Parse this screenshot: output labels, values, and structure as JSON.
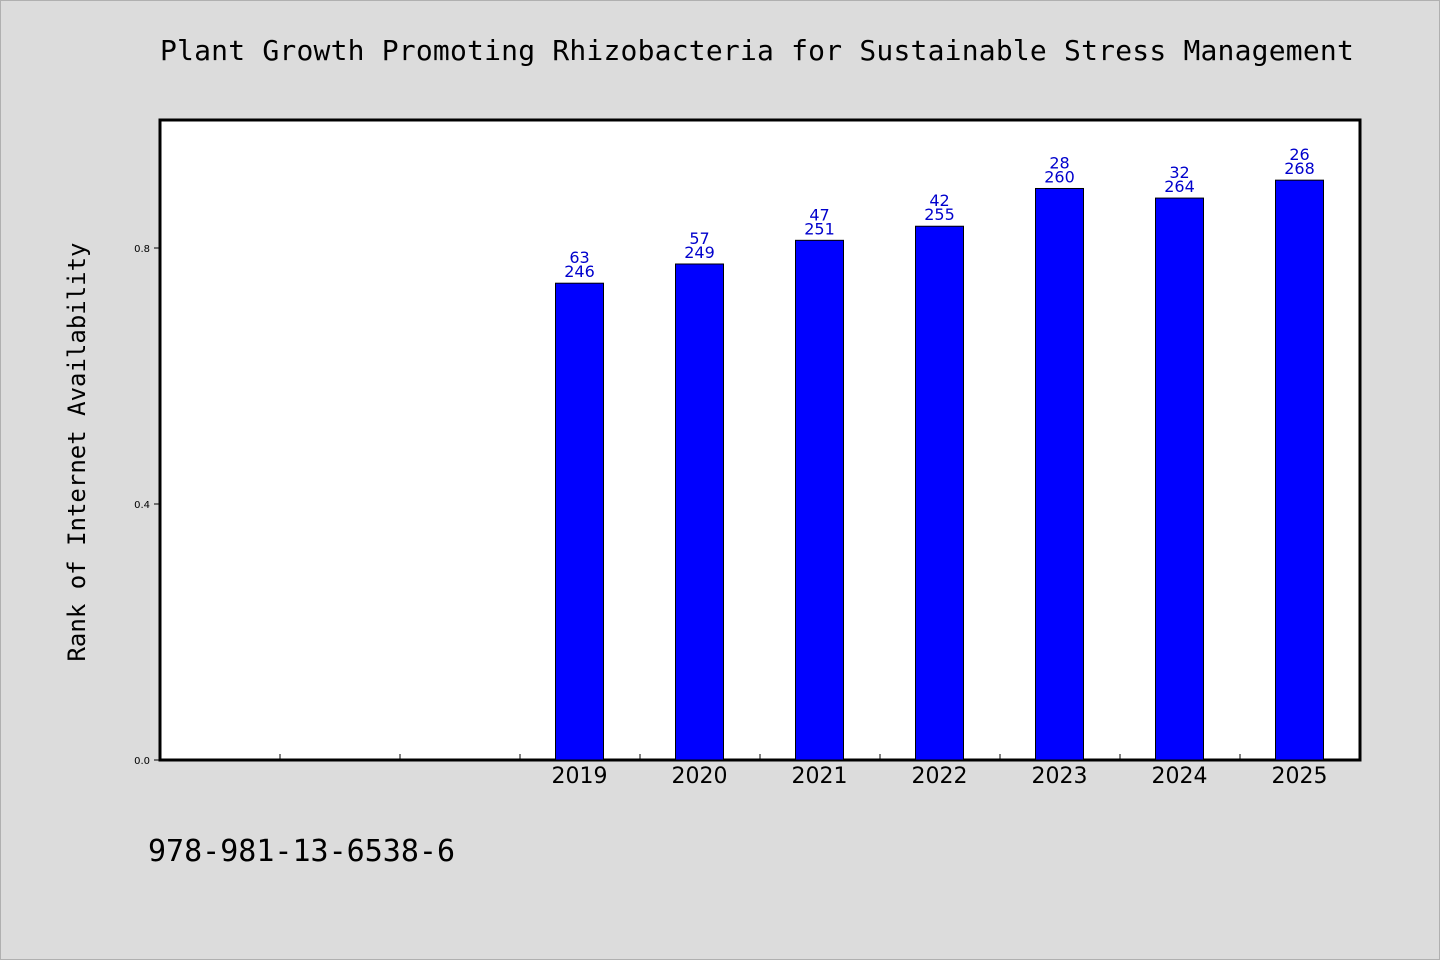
{
  "chart_data": {
    "type": "bar",
    "title": "Plant Growth Promoting Rhizobacteria for Sustainable Stress Management",
    "ylabel": "Rank of Internet Availability",
    "xlabel": "",
    "categories": [
      "2019",
      "2020",
      "2021",
      "2022",
      "2023",
      "2024",
      "2025"
    ],
    "values": [
      0.745,
      0.775,
      0.812,
      0.834,
      0.893,
      0.878,
      0.906
    ],
    "label_top": [
      "63",
      "57",
      "47",
      "42",
      "28",
      "32",
      "26"
    ],
    "label_bottom": [
      "246",
      "249",
      "251",
      "255",
      "260",
      "264",
      "268"
    ],
    "empty_leading_slots": 3,
    "yticks": [
      "0.0",
      "0.4",
      "0.8"
    ],
    "ytick_values": [
      0.0,
      0.4,
      0.8
    ],
    "ylim": [
      0.0,
      1.0
    ],
    "grid": false,
    "legend": "none"
  },
  "footer": {
    "isbn": "978-981-13-6538-6"
  },
  "colors": {
    "bar": "#0000ff",
    "label": "#0000cc",
    "background": "#dcdcdc",
    "plot": "#ffffff"
  }
}
